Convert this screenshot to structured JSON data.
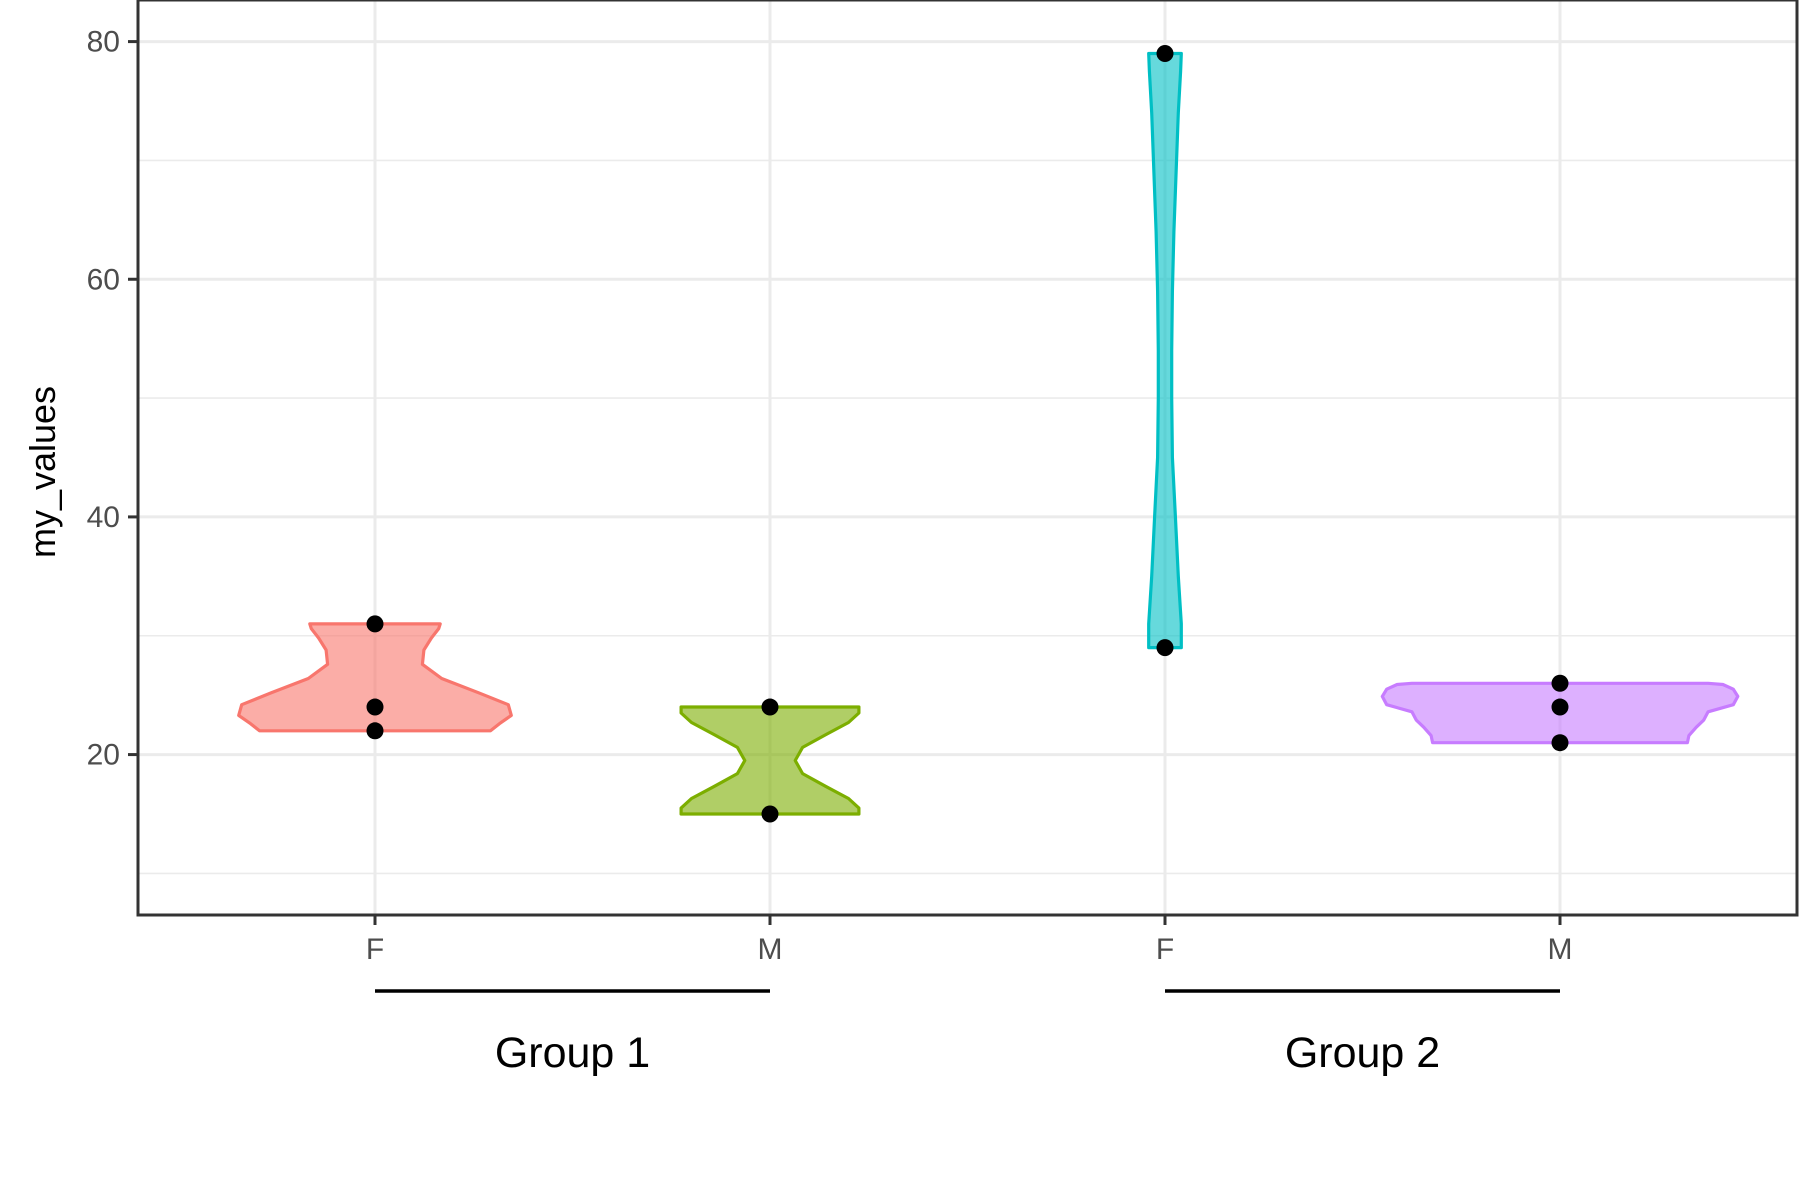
{
  "chart_data": {
    "type": "violin",
    "ylabel": "my_values",
    "xlabel": "",
    "ylim": [
      6.5,
      83.5
    ],
    "yticks": [
      20,
      40,
      60,
      80
    ],
    "yticks_minor": [
      10,
      30,
      50,
      70
    ],
    "grid": true,
    "legend": "none",
    "groups": [
      {
        "label": "Group 1",
        "categories": [
          "F",
          "M"
        ]
      },
      {
        "label": "Group 2",
        "categories": [
          "F",
          "M"
        ]
      }
    ],
    "series": [
      {
        "category": "F",
        "group": "Group 1",
        "color": "#F8766D",
        "points": [
          31,
          24,
          22
        ],
        "profile": [
          [
            22,
            0.78
          ],
          [
            22.6,
            0.84
          ],
          [
            23.3,
            0.92
          ],
          [
            24.2,
            0.9
          ],
          [
            25.2,
            0.7
          ],
          [
            26.4,
            0.45
          ],
          [
            27.6,
            0.32
          ],
          [
            28.8,
            0.33
          ],
          [
            29.8,
            0.38
          ],
          [
            30.6,
            0.43
          ],
          [
            31,
            0.44
          ]
        ]
      },
      {
        "category": "M",
        "group": "Group 1",
        "color": "#7CAE00",
        "points": [
          24,
          15
        ],
        "profile": [
          [
            15,
            0.6
          ],
          [
            15.5,
            0.6
          ],
          [
            16.3,
            0.53
          ],
          [
            17.3,
            0.38
          ],
          [
            18.4,
            0.22
          ],
          [
            19.5,
            0.17
          ],
          [
            20.6,
            0.22
          ],
          [
            21.7,
            0.38
          ],
          [
            22.7,
            0.53
          ],
          [
            23.5,
            0.6
          ],
          [
            24,
            0.6
          ]
        ]
      },
      {
        "category": "F",
        "group": "Group 2",
        "color": "#00BFC4",
        "points": [
          79,
          29
        ],
        "profile": [
          [
            29,
            0.11
          ],
          [
            31,
            0.11
          ],
          [
            35,
            0.09
          ],
          [
            40,
            0.07
          ],
          [
            45,
            0.05
          ],
          [
            50,
            0.045
          ],
          [
            54,
            0.045
          ],
          [
            59,
            0.05
          ],
          [
            64,
            0.06
          ],
          [
            69,
            0.075
          ],
          [
            74,
            0.09
          ],
          [
            77.5,
            0.105
          ],
          [
            79,
            0.11
          ]
        ]
      },
      {
        "category": "M",
        "group": "Group 2",
        "color": "#C77CFF",
        "points": [
          26,
          24,
          21
        ],
        "profile": [
          [
            21,
            0.86
          ],
          [
            21.6,
            0.87
          ],
          [
            22.3,
            0.92
          ],
          [
            22.9,
            0.97
          ],
          [
            23.6,
            1.0
          ],
          [
            24.2,
            1.17
          ],
          [
            24.9,
            1.2
          ],
          [
            25.5,
            1.17
          ],
          [
            25.9,
            1.1
          ],
          [
            26,
            1.0
          ]
        ]
      }
    ]
  }
}
